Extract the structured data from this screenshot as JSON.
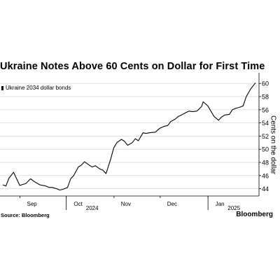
{
  "chart_data": {
    "type": "line",
    "title": "Ukraine Notes Above 60 Cents on Dollar for First Time",
    "legend": "Ukraine 2034 dollar bonds",
    "ylabel": "Cents on the dollar",
    "ylim": [
      43,
      61
    ],
    "yticks": [
      44,
      46,
      48,
      50,
      52,
      54,
      56,
      58,
      60
    ],
    "x_range": [
      "2024-08-19",
      "2025-01-30"
    ],
    "x_month_labels": [
      {
        "date": "2024-09-01",
        "label": "Sep"
      },
      {
        "date": "2024-10-01",
        "label": "Oct"
      },
      {
        "date": "2024-11-01",
        "label": "Nov"
      },
      {
        "date": "2024-12-01",
        "label": "Dec"
      },
      {
        "date": "2025-01-01",
        "label": "Jan"
      }
    ],
    "x_year_labels": [
      {
        "date": "2024-10-01",
        "label": "2024"
      },
      {
        "date": "2025-01-01",
        "label": "2025"
      }
    ],
    "grid": "horizontal",
    "legend_position": "top-left",
    "series": [
      {
        "name": "Ukraine 2034 dollar bonds",
        "color": "#000000",
        "points": [
          [
            "2024-08-19",
            44.6
          ],
          [
            "2024-08-21",
            44.4
          ],
          [
            "2024-08-23",
            45.6
          ],
          [
            "2024-08-26",
            46.5
          ],
          [
            "2024-08-28",
            45.5
          ],
          [
            "2024-08-30",
            44.5
          ],
          [
            "2024-09-03",
            44.8
          ],
          [
            "2024-09-06",
            45.5
          ],
          [
            "2024-09-09",
            45.0
          ],
          [
            "2024-09-12",
            44.6
          ],
          [
            "2024-09-16",
            44.4
          ],
          [
            "2024-09-18",
            44.2
          ],
          [
            "2024-09-20",
            44.2
          ],
          [
            "2024-09-23",
            44.0
          ],
          [
            "2024-09-25",
            43.8
          ],
          [
            "2024-09-27",
            43.9
          ],
          [
            "2024-09-30",
            44.2
          ],
          [
            "2024-10-02",
            45.5
          ],
          [
            "2024-10-04",
            46.0
          ],
          [
            "2024-10-07",
            47.3
          ],
          [
            "2024-10-09",
            47.6
          ],
          [
            "2024-10-11",
            48.1
          ],
          [
            "2024-10-14",
            47.6
          ],
          [
            "2024-10-16",
            47.3
          ],
          [
            "2024-10-18",
            47.5
          ],
          [
            "2024-10-21",
            47.0
          ],
          [
            "2024-10-23",
            46.8
          ],
          [
            "2024-10-25",
            46.3
          ],
          [
            "2024-10-28",
            48.5
          ],
          [
            "2024-10-30",
            50.2
          ],
          [
            "2024-11-01",
            51.0
          ],
          [
            "2024-11-04",
            51.5
          ],
          [
            "2024-11-06",
            51.2
          ],
          [
            "2024-11-08",
            50.6
          ],
          [
            "2024-11-11",
            51.0
          ],
          [
            "2024-11-13",
            51.6
          ],
          [
            "2024-11-15",
            51.3
          ],
          [
            "2024-11-18",
            52.5
          ],
          [
            "2024-11-20",
            52.4
          ],
          [
            "2024-11-22",
            52.5
          ],
          [
            "2024-11-26",
            52.6
          ],
          [
            "2024-11-29",
            53.2
          ],
          [
            "2024-12-02",
            53.5
          ],
          [
            "2024-12-04",
            53.6
          ],
          [
            "2024-12-06",
            54.2
          ],
          [
            "2024-12-09",
            54.6
          ],
          [
            "2024-12-11",
            55.0
          ],
          [
            "2024-12-13",
            55.2
          ],
          [
            "2024-12-16",
            55.6
          ],
          [
            "2024-12-18",
            55.8
          ],
          [
            "2024-12-20",
            55.7
          ],
          [
            "2024-12-23",
            55.8
          ],
          [
            "2024-12-26",
            56.5
          ],
          [
            "2024-12-27",
            57.2
          ],
          [
            "2024-12-30",
            56.6
          ],
          [
            "2025-01-02",
            55.4
          ],
          [
            "2025-01-03",
            55.0
          ],
          [
            "2025-01-06",
            54.4
          ],
          [
            "2025-01-08",
            54.9
          ],
          [
            "2025-01-10",
            55.2
          ],
          [
            "2025-01-13",
            55.3
          ],
          [
            "2025-01-15",
            56.0
          ],
          [
            "2025-01-17",
            56.2
          ],
          [
            "2025-01-20",
            56.4
          ],
          [
            "2025-01-22",
            56.6
          ],
          [
            "2025-01-24",
            58.0
          ],
          [
            "2025-01-27",
            59.2
          ],
          [
            "2025-01-30",
            60.1
          ]
        ]
      }
    ]
  },
  "footer": {
    "source": "Source: Bloomberg",
    "brand": "Bloomberg"
  }
}
